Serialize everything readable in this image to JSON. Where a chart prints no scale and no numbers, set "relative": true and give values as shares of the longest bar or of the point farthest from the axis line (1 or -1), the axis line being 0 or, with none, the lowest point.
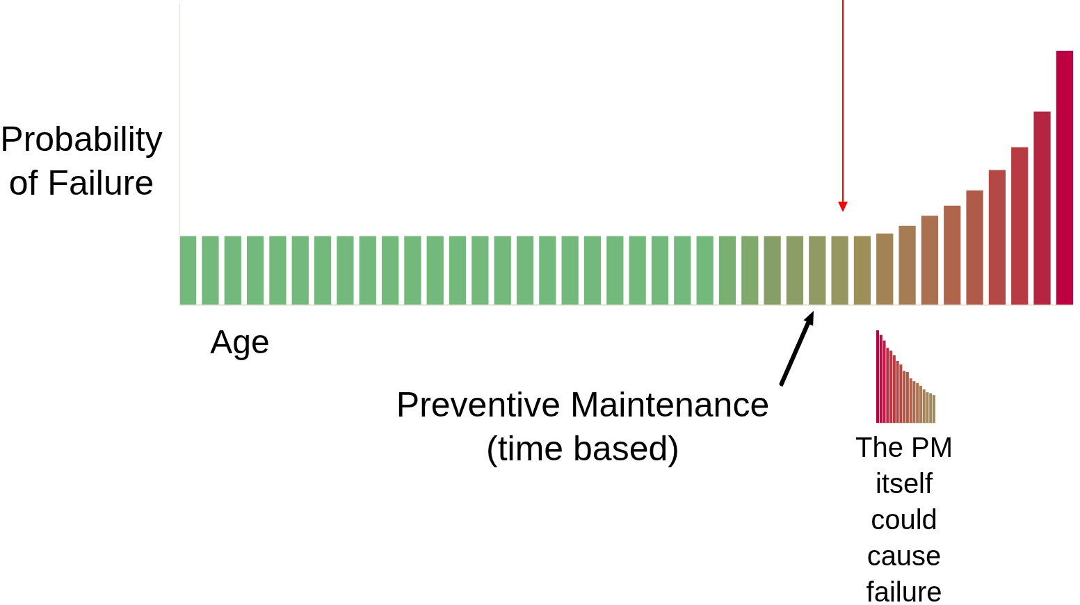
{
  "chart_data": [
    {
      "type": "bar",
      "relative": true,
      "ylabel": "Probability\nof Failure",
      "xlabel": "Age",
      "categories": [
        null,
        null,
        null,
        null,
        null,
        null,
        null,
        null,
        null,
        null,
        null,
        null,
        null,
        null,
        null,
        null,
        null,
        null,
        null,
        null,
        null,
        null,
        null,
        null,
        null,
        null,
        null,
        null,
        null,
        null,
        null,
        null,
        null,
        null,
        null,
        null,
        null,
        null,
        null,
        null
      ],
      "values": [
        0.27,
        0.27,
        0.27,
        0.27,
        0.27,
        0.27,
        0.27,
        0.27,
        0.27,
        0.27,
        0.27,
        0.27,
        0.27,
        0.27,
        0.27,
        0.27,
        0.27,
        0.27,
        0.27,
        0.27,
        0.27,
        0.27,
        0.27,
        0.27,
        0.27,
        0.27,
        0.27,
        0.27,
        0.27,
        0.27,
        0.27,
        0.28,
        0.31,
        0.35,
        0.39,
        0.45,
        0.53,
        0.62,
        0.76,
        1
      ],
      "colors": [
        "#72b97b",
        "#72b97b",
        "#72b97b",
        "#72b97b",
        "#72b97b",
        "#72b97b",
        "#72b97b",
        "#72b97b",
        "#72b97b",
        "#72b97b",
        "#72b97b",
        "#72b97b",
        "#72b97b",
        "#72b97b",
        "#72b97b",
        "#72b97b",
        "#72b97b",
        "#72b97b",
        "#72b97b",
        "#72b97b",
        "#72b97b",
        "#72b97b",
        "#72b97b",
        "#72b97b",
        "#7aaf72",
        "#80a96d",
        "#869f68",
        "#8d9d66",
        "#929a63",
        "#969760",
        "#9e8e58",
        "#a38253",
        "#a67c55",
        "#ab7050",
        "#af644c",
        "#b05a4a",
        "#b34846",
        "#b83a42",
        "#b52440",
        "#bd0040"
      ],
      "annotations": [
        "Preventive Maintenance\n(time based)"
      ]
    },
    {
      "type": "bar",
      "relative": true,
      "categories": [
        null,
        null,
        null,
        null,
        null,
        null,
        null,
        null,
        null,
        null,
        null,
        null,
        null,
        null,
        null,
        null,
        null,
        null
      ],
      "values": [
        1,
        0.95,
        0.89,
        0.81,
        0.78,
        0.73,
        0.67,
        0.63,
        0.56,
        0.55,
        0.48,
        0.45,
        0.43,
        0.4,
        0.36,
        0.33,
        0.32,
        0.3
      ],
      "colors": [
        "#bd0040",
        "#bf0a44",
        "#c21a46",
        "#c22a44",
        "#c03342",
        "#bb3a40",
        "#b44442",
        "#b04a44",
        "#b25446",
        "#b05a48",
        "#b0604a",
        "#ae684c",
        "#ac704e",
        "#a87852",
        "#a88058",
        "#a2885a",
        "#a08a5e",
        "#a08a5e"
      ],
      "annotations": [
        "The PM\nitself\ncould\ncause\nfailure"
      ]
    }
  ]
}
